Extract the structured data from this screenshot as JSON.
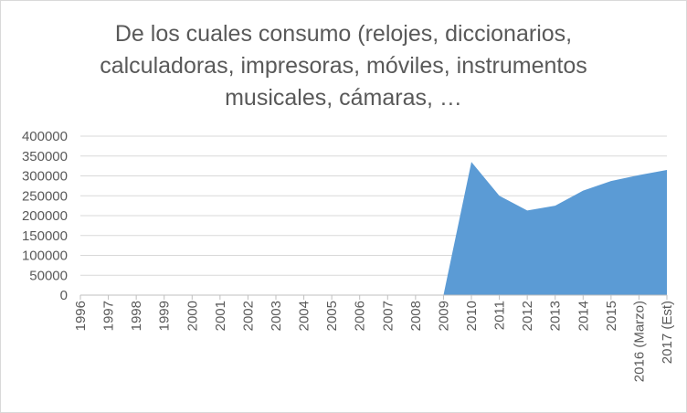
{
  "chart_data": {
    "type": "area",
    "title_lines": [
      "De los cuales consumo (relojes, diccionarios,",
      "calculadoras, impresoras, móviles, instrumentos",
      "musicales, cámaras, …"
    ],
    "categories": [
      "1996",
      "1997",
      "1998",
      "1999",
      "2000",
      "2001",
      "2002",
      "2003",
      "2004",
      "2005",
      "2006",
      "2007",
      "2008",
      "2009",
      "2010",
      "2011",
      "2012",
      "2013",
      "2014",
      "2015",
      "2016 (Marzo)",
      "2017 (Est)"
    ],
    "series": [
      {
        "values": [
          null,
          null,
          null,
          null,
          null,
          null,
          null,
          null,
          null,
          null,
          null,
          null,
          null,
          0,
          335000,
          250000,
          213000,
          225000,
          263000,
          287000,
          302000,
          315000
        ],
        "color": "#5b9bd5"
      }
    ],
    "ylim": [
      0,
      400000
    ],
    "yticks": [
      0,
      50000,
      100000,
      150000,
      200000,
      250000,
      300000,
      350000,
      400000
    ],
    "grid": true,
    "legend": "none",
    "colors": {
      "gridline": "#d9d9d9",
      "axis_text": "#595959",
      "axis_line": "#bfbfbf",
      "border": "#d9d9d9"
    }
  }
}
